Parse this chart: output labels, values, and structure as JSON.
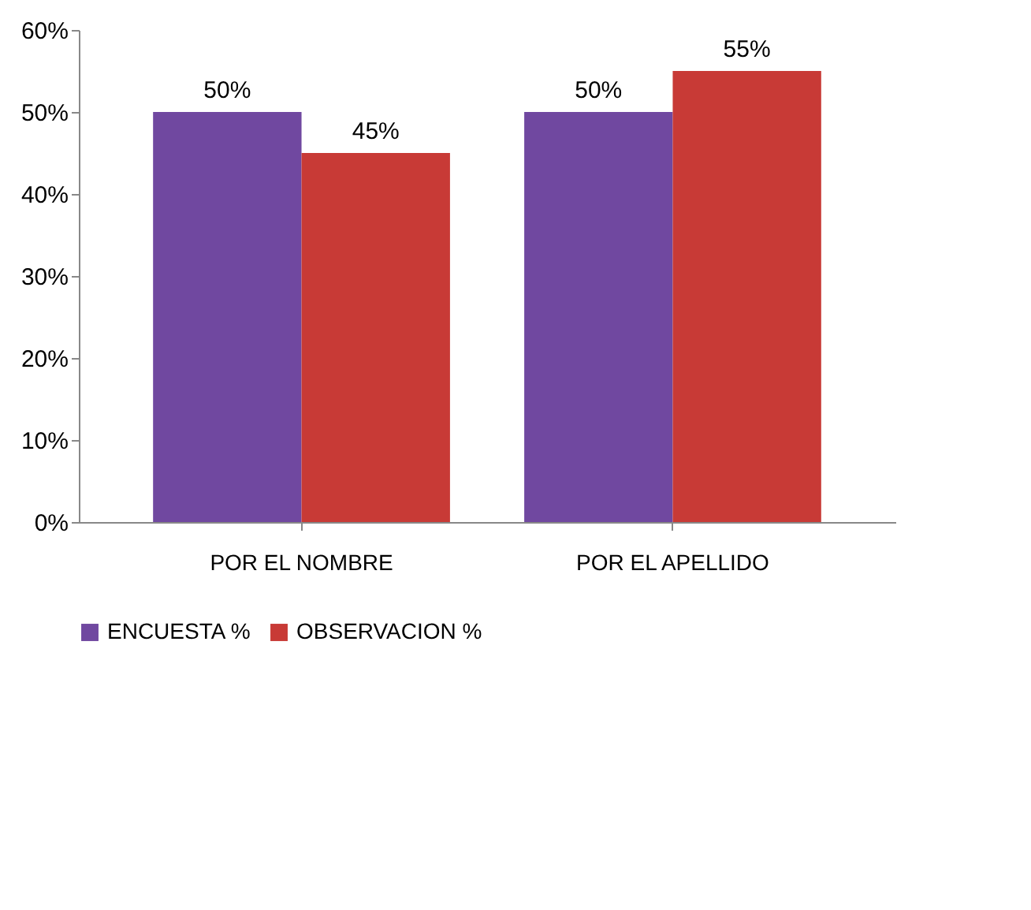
{
  "chart_data": {
    "type": "bar",
    "categories": [
      "POR EL NOMBRE",
      "POR EL APELLIDO"
    ],
    "series": [
      {
        "name": "ENCUESTA %",
        "color": "#7048a0",
        "values": [
          50,
          50
        ],
        "value_labels": [
          "50%",
          "50%"
        ]
      },
      {
        "name": "OBSERVACION %",
        "color": "#c83a36",
        "values": [
          45,
          55
        ],
        "value_labels": [
          "45%",
          "55%"
        ]
      }
    ],
    "ylim": [
      0,
      60
    ],
    "yticks": [
      {
        "value": 0,
        "label": "0%"
      },
      {
        "value": 10,
        "label": "10%"
      },
      {
        "value": 20,
        "label": "20%"
      },
      {
        "value": 30,
        "label": "30%"
      },
      {
        "value": 40,
        "label": "40%"
      },
      {
        "value": 50,
        "label": "50%"
      },
      {
        "value": 60,
        "label": "60%"
      }
    ],
    "grid": false,
    "legend": "bottom"
  }
}
